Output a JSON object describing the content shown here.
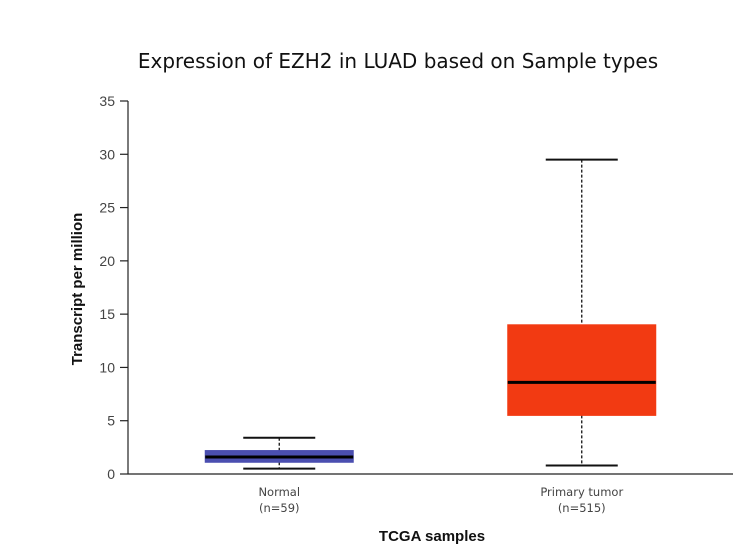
{
  "chart_data": {
    "type": "box",
    "title": "Expression of EZH2 in LUAD based on Sample types",
    "xlabel": "TCGA samples",
    "ylabel": "Transcript per million",
    "ylim": [
      0,
      35
    ],
    "yticks": [
      0,
      5,
      10,
      15,
      20,
      25,
      30,
      35
    ],
    "groups": [
      {
        "label": "Normal",
        "count": "(n=59)",
        "color": "#4b4fb0",
        "whisker_low": 0.5,
        "q1": 1.1,
        "median": 1.6,
        "q3": 2.2,
        "whisker_high": 3.4
      },
      {
        "label": "Primary tumor",
        "count": "(n=515)",
        "color": "#f23a12",
        "whisker_low": 0.8,
        "q1": 5.5,
        "median": 8.6,
        "q3": 14.0,
        "whisker_high": 29.5
      }
    ]
  }
}
